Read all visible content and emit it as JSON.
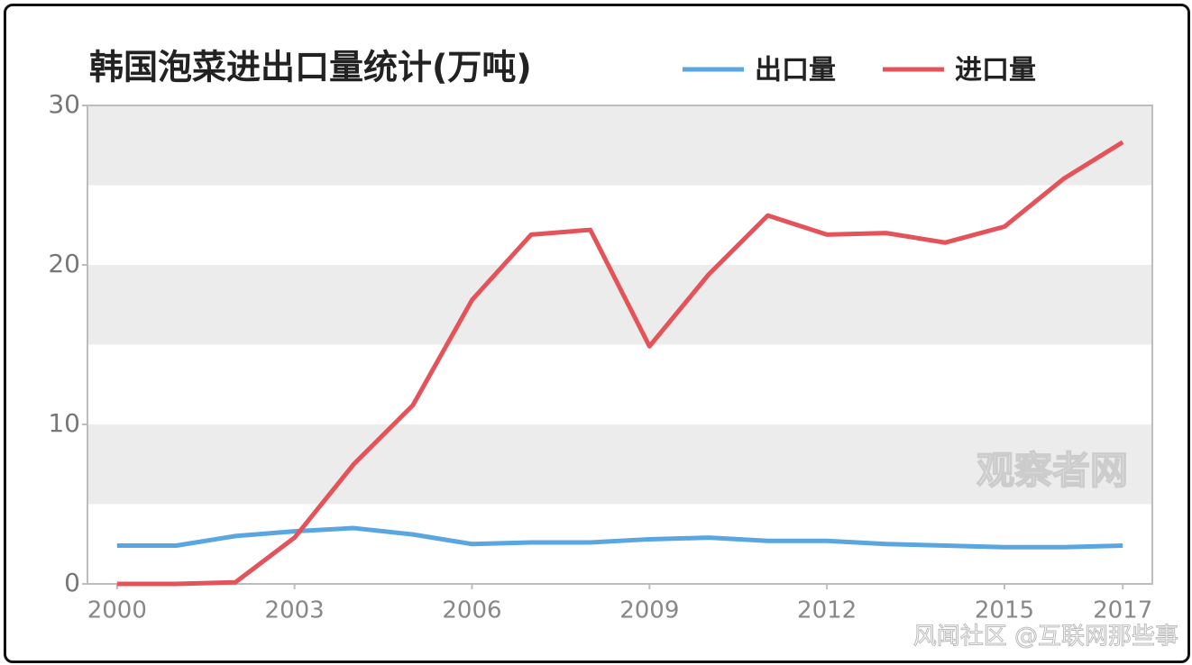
{
  "chart_data": {
    "type": "line",
    "title": "韩国泡菜进出口量统计(万吨)",
    "x": [
      2000,
      2001,
      2002,
      2003,
      2004,
      2005,
      2006,
      2007,
      2008,
      2009,
      2010,
      2011,
      2012,
      2013,
      2014,
      2015,
      2016,
      2017
    ],
    "series": [
      {
        "name": "出口量",
        "color": "#5aa6e0",
        "values": [
          2.4,
          2.4,
          3.0,
          3.3,
          3.5,
          3.1,
          2.5,
          2.6,
          2.6,
          2.8,
          2.9,
          2.7,
          2.7,
          2.5,
          2.4,
          2.3,
          2.3,
          2.4
        ]
      },
      {
        "name": "进口量",
        "color": "#e5535a",
        "values": [
          0,
          0,
          0.1,
          2.9,
          7.5,
          11.2,
          17.8,
          21.9,
          22.2,
          14.9,
          19.4,
          23.1,
          21.9,
          22.0,
          21.4,
          22.4,
          25.4,
          27.7
        ]
      }
    ],
    "xlim": [
      1999.5,
      2017.5
    ],
    "xticks": [
      2000,
      2003,
      2006,
      2009,
      2012,
      2015,
      2017
    ],
    "ylim": [
      0,
      30
    ],
    "yticks": [
      0,
      10,
      20,
      30
    ],
    "bands": true,
    "annotations": [
      "观察者网",
      "风闻社区 @互联网那些事"
    ]
  }
}
